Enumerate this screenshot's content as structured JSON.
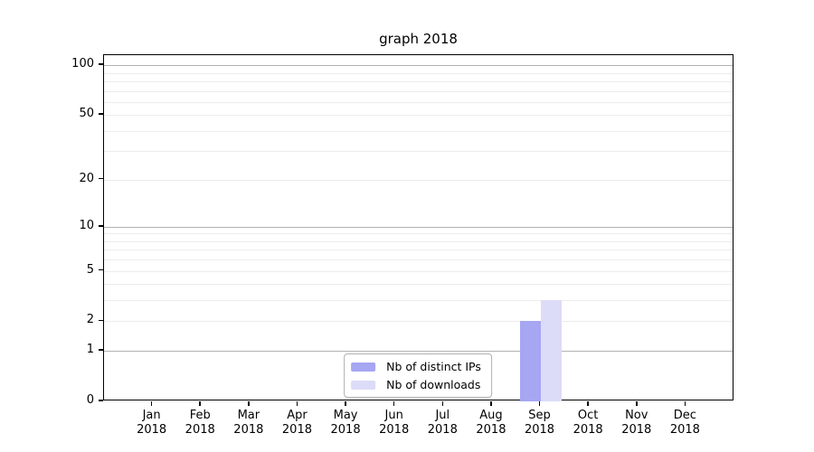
{
  "chart_data": {
    "type": "bar",
    "title": "graph 2018",
    "x_year": "2018",
    "categories": [
      "Jan",
      "Feb",
      "Mar",
      "Apr",
      "May",
      "Jun",
      "Jul",
      "Aug",
      "Sep",
      "Oct",
      "Nov",
      "Dec"
    ],
    "series": [
      {
        "name": "Nb of distinct IPs",
        "color": "#a6a6f2",
        "values": [
          0,
          0,
          0,
          0,
          0,
          0,
          0,
          0,
          2,
          0,
          0,
          0
        ]
      },
      {
        "name": "Nb of downloads",
        "color": "#dcdcf8",
        "values": [
          0,
          0,
          0,
          0,
          0,
          0,
          0,
          0,
          3,
          0,
          0,
          0
        ]
      }
    ],
    "yscale": "log1p",
    "ylim": [
      0,
      115
    ],
    "yticks": [
      0,
      1,
      2,
      5,
      10,
      20,
      50,
      100
    ],
    "grid": {
      "major": [
        1,
        10,
        100
      ],
      "minor": [
        2,
        3,
        4,
        5,
        6,
        7,
        8,
        9,
        20,
        30,
        40,
        50,
        60,
        70,
        80,
        90
      ]
    },
    "legend_position": "lower center",
    "xlabel": "",
    "ylabel": ""
  },
  "colors": {
    "background": "#ffffff",
    "axis": "#000000",
    "major_grid": "#b2b2b2",
    "minor_grid": "#ececec",
    "legend_border": "#b0b0b0",
    "text": "#000000"
  }
}
